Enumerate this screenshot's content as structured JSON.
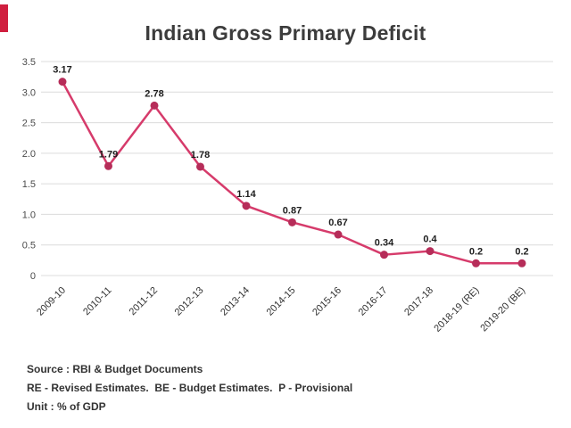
{
  "brand": {
    "accent_color": "#d01f3f"
  },
  "title": "Indian Gross Primary Deficit",
  "chart_data": {
    "type": "line",
    "title": "Indian Gross Primary Deficit",
    "categories": [
      "2009-10",
      "2010-11",
      "2011-12",
      "2012-13",
      "2013-14",
      "2014-15",
      "2015-16",
      "2016-17",
      "2017-18",
      "2018-19 (RE)",
      "2019-20 (BE)"
    ],
    "values": [
      3.17,
      1.79,
      2.78,
      1.78,
      1.14,
      0.87,
      0.67,
      0.34,
      0.4,
      0.2,
      0.2
    ],
    "labels": [
      "3.17",
      "1.79",
      "2.78",
      "1.78",
      "1.14",
      "0.87",
      "0.67",
      "0.34",
      "0.4",
      "0.2",
      "0.2"
    ],
    "xlabel": "",
    "ylabel": "",
    "ylim": [
      0,
      3.5
    ],
    "ytick_values": [
      0,
      0.5,
      1.0,
      1.5,
      2.0,
      2.5,
      3.0,
      3.5
    ],
    "ytick_labels": [
      "0",
      "0.5",
      "1.0",
      "1.5",
      "2.0",
      "2.5",
      "3.0",
      "3.5"
    ],
    "grid": true,
    "legend": "none",
    "line_color": "#d63b6b",
    "point_color": "#b62d59",
    "grid_color": "#dcdcdc"
  },
  "footer": {
    "source": "Source : RBI & Budget Documents",
    "legend": "RE - Revised Estimates.  BE - Budget Estimates.  P - Provisional",
    "unit": "Unit : % of GDP"
  }
}
